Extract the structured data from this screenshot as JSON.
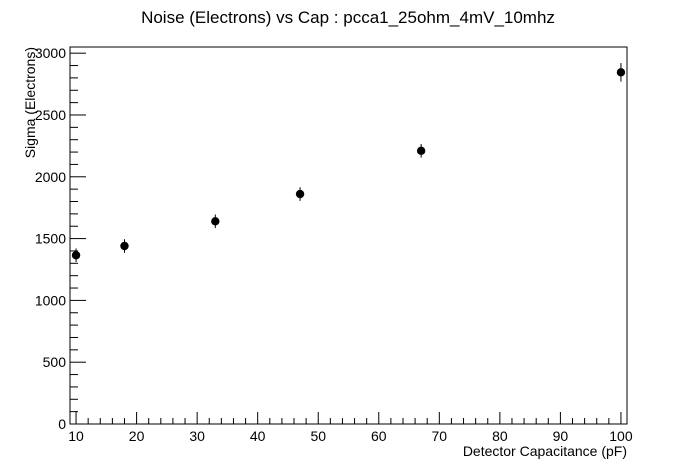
{
  "chart_data": {
    "type": "scatter",
    "title": "Noise (Electrons) vs Cap : pcca1_25ohm_4mV_10mhz",
    "xlabel": "Detector Capacitance (pF)",
    "ylabel": "Sigma (Electrons)",
    "xlim": [
      9,
      101
    ],
    "ylim": [
      0,
      3050
    ],
    "x_ticks": [
      10,
      20,
      30,
      40,
      50,
      60,
      70,
      80,
      90,
      100
    ],
    "y_ticks": [
      0,
      500,
      1000,
      1500,
      2000,
      2500,
      3000
    ],
    "grid": false,
    "legend": "none",
    "x": [
      10,
      18,
      33,
      47,
      67,
      100
    ],
    "y": [
      1365,
      1440,
      1640,
      1860,
      2210,
      2845
    ],
    "y_err": [
      55,
      55,
      55,
      55,
      55,
      75
    ],
    "marker_color": "#000000"
  }
}
